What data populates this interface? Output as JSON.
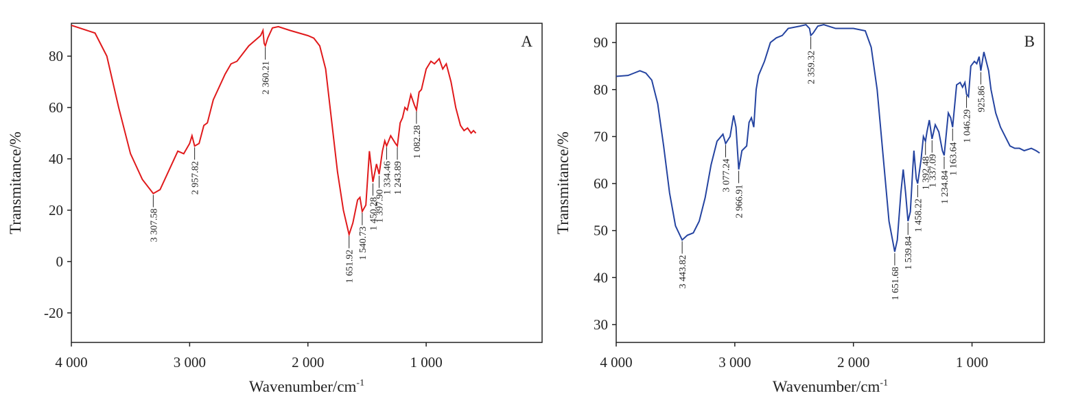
{
  "chart_data": [
    {
      "type": "line",
      "panel_label": "A",
      "ylabel": "Transmitance/%",
      "xlabel": "Wavenumber/cm",
      "xlabel_superscript": "-1",
      "color": "#e0191b",
      "xlim": [
        4000,
        20
      ],
      "xticks": [
        {
          "value": 4000,
          "label": "4 000"
        },
        {
          "value": 3000,
          "label": "3 000"
        },
        {
          "value": 2000,
          "label": "2 000"
        },
        {
          "value": 1000,
          "label": "1 000"
        }
      ],
      "ylim": [
        -31.5,
        92.8
      ],
      "yticks": [
        -20,
        0,
        20,
        40,
        60,
        80
      ],
      "x": [
        4000,
        3800,
        3700,
        3600,
        3500,
        3400,
        3307.58,
        3250,
        3150,
        3100,
        3050,
        3000,
        2980,
        2957.82,
        2920,
        2880,
        2850,
        2800,
        2700,
        2650,
        2600,
        2500,
        2400,
        2380,
        2370,
        2360.21,
        2340,
        2300,
        2250,
        2150,
        2000,
        1950,
        1900,
        1850,
        1800,
        1750,
        1700,
        1651.92,
        1620,
        1580,
        1560,
        1540.73,
        1510,
        1480,
        1450.28,
        1420,
        1397.9,
        1370,
        1350,
        1334.46,
        1300,
        1260,
        1243.89,
        1220,
        1200,
        1180,
        1160,
        1130,
        1100,
        1082.28,
        1060,
        1040,
        1000,
        960,
        930,
        890,
        860,
        830,
        790,
        750,
        710,
        680,
        650,
        620,
        600,
        580
      ],
      "values": [
        92,
        89,
        80,
        60,
        42,
        32,
        26.5,
        28,
        38,
        43,
        42,
        46,
        49,
        45,
        46,
        53,
        54,
        63,
        73,
        77,
        78,
        84,
        88,
        90,
        85,
        84,
        87,
        91,
        91.5,
        90,
        88,
        87,
        84,
        75,
        55,
        35,
        20,
        10.5,
        15,
        24,
        25,
        19.5,
        22,
        43,
        31,
        38,
        34,
        43,
        47,
        45,
        49,
        46,
        45,
        54,
        56,
        60,
        59,
        65,
        61,
        59,
        66,
        67,
        75,
        78,
        77,
        79,
        75,
        77,
        70,
        60,
        53,
        51,
        52,
        50,
        51,
        50
      ],
      "annotations": [
        {
          "label": "3 307.58",
          "x": 3307.58
        },
        {
          "label": "2 957.82",
          "x": 2957.82
        },
        {
          "label": "2 360.21",
          "x": 2360.21
        },
        {
          "label": "1 651.92",
          "x": 1651.92
        },
        {
          "label": "1 540.73",
          "x": 1540.73
        },
        {
          "label": "1 450.28",
          "x": 1450.28
        },
        {
          "label": "1 397.90",
          "x": 1397.9
        },
        {
          "label": "1 334.46",
          "x": 1334.46
        },
        {
          "label": "1 243.89",
          "x": 1243.89
        },
        {
          "label": "1 082.28",
          "x": 1082.28
        }
      ]
    },
    {
      "type": "line",
      "panel_label": "B",
      "ylabel": "Transmitance/%",
      "xlabel": "Wavenumber/cm",
      "xlabel_superscript": "-1",
      "color": "#2443a0",
      "xlim": [
        4000,
        390
      ],
      "xticks": [
        {
          "value": 4000,
          "label": "4 000"
        },
        {
          "value": 3000,
          "label": "3 000"
        },
        {
          "value": 2000,
          "label": "2 000"
        },
        {
          "value": 1000,
          "label": "1 000"
        }
      ],
      "ylim": [
        26.2,
        94.1
      ],
      "yticks": [
        30,
        40,
        50,
        60,
        70,
        80,
        90
      ],
      "x": [
        4000,
        3900,
        3850,
        3800,
        3750,
        3700,
        3650,
        3600,
        3550,
        3500,
        3443.82,
        3400,
        3350,
        3300,
        3250,
        3200,
        3150,
        3100,
        3077.24,
        3040,
        3010,
        2990,
        2966.91,
        2940,
        2900,
        2880,
        2860,
        2840,
        2820,
        2800,
        2750,
        2700,
        2650,
        2600,
        2550,
        2450,
        2400,
        2370,
        2359.32,
        2340,
        2300,
        2250,
        2150,
        2000,
        1900,
        1850,
        1800,
        1750,
        1700,
        1651.68,
        1630,
        1600,
        1580,
        1560,
        1539.84,
        1520,
        1500,
        1490,
        1470,
        1458.22,
        1430,
        1410,
        1392.48,
        1380,
        1360,
        1337.09,
        1310,
        1280,
        1250,
        1234.84,
        1200,
        1180,
        1163.64,
        1130,
        1100,
        1080,
        1060,
        1046.29,
        1030,
        1010,
        980,
        960,
        940,
        925.86,
        900,
        880,
        860,
        840,
        800,
        760,
        720,
        680,
        640,
        600,
        560,
        500,
        460,
        430
      ],
      "values": [
        82.8,
        83,
        83.5,
        84,
        83.5,
        82,
        77,
        68,
        58,
        51,
        48,
        49,
        49.5,
        52,
        57,
        64,
        69,
        70.5,
        68.5,
        70,
        74.5,
        72,
        63,
        67,
        68,
        73,
        74,
        72,
        80,
        83,
        86,
        90,
        91,
        91.5,
        93,
        93.5,
        93.8,
        93,
        91.5,
        92,
        93.5,
        93.8,
        93,
        93,
        92.5,
        89,
        80,
        66,
        52,
        45.5,
        48,
        58,
        63,
        58,
        52,
        54,
        63,
        67,
        61,
        60,
        65,
        70,
        69,
        71,
        73.5,
        69.5,
        72.5,
        71,
        67,
        66,
        75,
        74,
        72,
        81,
        81.5,
        80.5,
        81.5,
        79,
        78.5,
        85,
        86,
        85.5,
        87,
        84,
        88,
        86,
        84,
        80,
        75,
        72,
        70,
        68,
        67.5,
        67.5,
        67,
        67.5,
        67,
        66.5
      ],
      "annotations": [
        {
          "label": "3 443.82",
          "x": 3443.82
        },
        {
          "label": "3 077.24",
          "x": 3077.24
        },
        {
          "label": "2 966.91",
          "x": 2966.91
        },
        {
          "label": "2 359.32",
          "x": 2359.32
        },
        {
          "label": "1 651.68",
          "x": 1651.68
        },
        {
          "label": "1 539.84",
          "x": 1539.84
        },
        {
          "label": "1 458.22",
          "x": 1458.22
        },
        {
          "label": "1 392.48",
          "x": 1392.48
        },
        {
          "label": "1 337.09",
          "x": 1337.09
        },
        {
          "label": "1 234.84",
          "x": 1234.84
        },
        {
          "label": "1 163.64",
          "x": 1163.64
        },
        {
          "label": "1 046.29",
          "x": 1046.29
        },
        {
          "label": "925.86",
          "x": 925.86
        }
      ]
    }
  ]
}
